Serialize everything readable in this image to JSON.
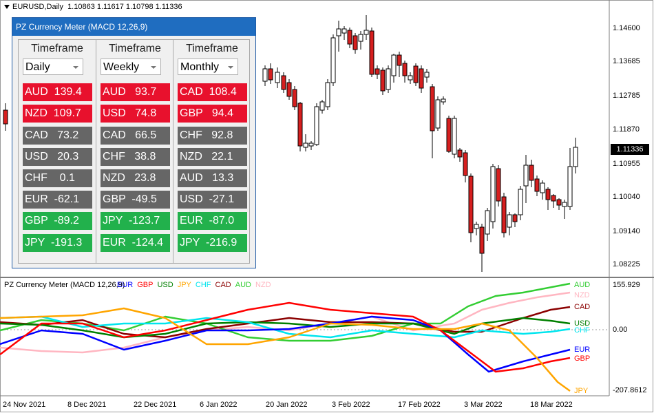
{
  "chart": {
    "title": "EURUSD,Daily  1.10863 1.11617 1.10798 1.11336",
    "current_price": "1.11336",
    "price_axis": [
      "1.14600",
      "1.13685",
      "1.12785",
      "1.11870",
      "1.10955",
      "1.10040",
      "1.09140",
      "1.08225"
    ],
    "indicator_axis": [
      "155.929",
      "0.00",
      "-207.8612"
    ],
    "dates": [
      "24 Nov 2021",
      "8 Dec 2021",
      "22 Dec 2021",
      "6 Jan 2022",
      "20 Jan 2022",
      "3 Feb 2022",
      "17 Feb 2022",
      "3 Mar 2022",
      "18 Mar 2022"
    ]
  },
  "indicator": {
    "title": "PZ Currency Meter (MACD 12,26,9)",
    "legend": [
      {
        "name": "EUR",
        "color": "#0000ff"
      },
      {
        "name": "GBP",
        "color": "#ff0000"
      },
      {
        "name": "USD",
        "color": "#008000"
      },
      {
        "name": "JPY",
        "color": "#ffa500"
      },
      {
        "name": "CHF",
        "color": "#00e5ee"
      },
      {
        "name": "CAD",
        "color": "#8b0000"
      },
      {
        "name": "AUD",
        "color": "#32cd32"
      },
      {
        "name": "NZD",
        "color": "#ffb6c1"
      }
    ],
    "right_tags": [
      {
        "name": "AUD",
        "color": "#32cd32"
      },
      {
        "name": "NZD",
        "color": "#ffb6c1"
      },
      {
        "name": "CAD",
        "color": "#8b0000"
      },
      {
        "name": "USD",
        "color": "#008000"
      },
      {
        "name": "CHF",
        "color": "#00e5ee"
      },
      {
        "name": "EUR",
        "color": "#0000ff"
      },
      {
        "name": "GBP",
        "color": "#ff0000"
      },
      {
        "name": "JPY",
        "color": "#ffa500"
      }
    ]
  },
  "panel": {
    "title": "PZ Currency Meter (MACD 12,26,9)",
    "columns": [
      {
        "header": "Timeframe",
        "selected": "Daily",
        "rows": [
          {
            "text": "AUD  139.4",
            "kind": "red"
          },
          {
            "text": "NZD  109.7",
            "kind": "red"
          },
          {
            "text": "CAD   73.2",
            "kind": "gray"
          },
          {
            "text": "USD   20.3",
            "kind": "gray"
          },
          {
            "text": "CHF    0.1",
            "kind": "gray"
          },
          {
            "text": "EUR  -62.1",
            "kind": "gray"
          },
          {
            "text": "GBP  -89.2",
            "kind": "green"
          },
          {
            "text": "JPY  -191.3",
            "kind": "green"
          }
        ]
      },
      {
        "header": "Timeframe",
        "selected": "Weekly",
        "rows": [
          {
            "text": "AUD   93.7",
            "kind": "red"
          },
          {
            "text": "USD   74.8",
            "kind": "red"
          },
          {
            "text": "CAD   66.5",
            "kind": "gray"
          },
          {
            "text": "CHF   38.8",
            "kind": "gray"
          },
          {
            "text": "NZD   23.8",
            "kind": "gray"
          },
          {
            "text": "GBP  -49.5",
            "kind": "gray"
          },
          {
            "text": "JPY  -123.7",
            "kind": "green"
          },
          {
            "text": "EUR  -124.4",
            "kind": "green"
          }
        ]
      },
      {
        "header": "Timeframe",
        "selected": "Monthly",
        "rows": [
          {
            "text": "CAD  108.4",
            "kind": "red"
          },
          {
            "text": "GBP   94.4",
            "kind": "red"
          },
          {
            "text": "CHF   92.8",
            "kind": "gray"
          },
          {
            "text": "NZD   22.1",
            "kind": "gray"
          },
          {
            "text": "AUD   13.3",
            "kind": "gray"
          },
          {
            "text": "USD  -27.1",
            "kind": "gray"
          },
          {
            "text": "EUR  -87.0",
            "kind": "green"
          },
          {
            "text": "JPY  -216.9",
            "kind": "green"
          }
        ]
      }
    ],
    "colors": {
      "red": "#e8112d",
      "gray": "#666666",
      "green": "#22b14c"
    }
  }
}
